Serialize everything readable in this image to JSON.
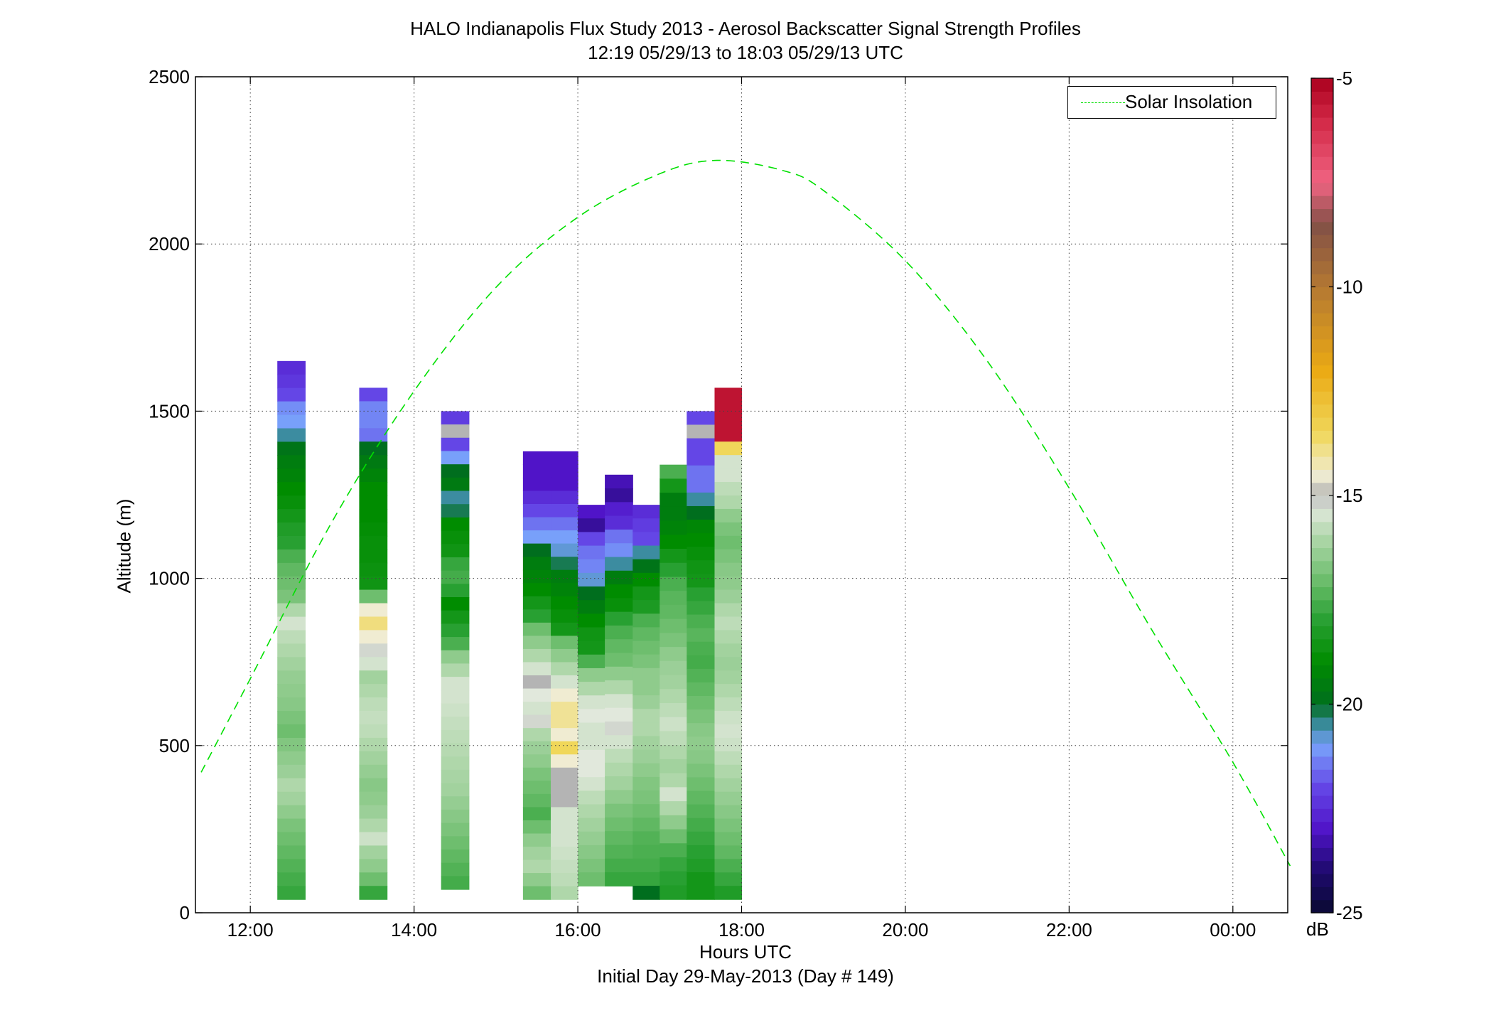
{
  "title": "HALO Indianapolis Flux Study 2013 - Aerosol Backscatter Signal Strength Profiles",
  "subtitle": "12:19 05/29/13 to 18:03 05/29/13  UTC",
  "xlabel": "Hours UTC",
  "xlabel2": "Initial Day 29-May-2013 (Day # 149)",
  "ylabel": "Altitude (m)",
  "legend_label": "Solar Insolation",
  "colorbar_unit": "dB",
  "chart_data": {
    "type": "heatmap",
    "x_axis": {
      "range": [
        11.33,
        24.67
      ],
      "ticks": [
        12,
        14,
        16,
        18,
        20,
        22,
        24
      ],
      "tick_labels": [
        "12:00",
        "14:00",
        "16:00",
        "18:00",
        "20:00",
        "22:00",
        "00:00"
      ]
    },
    "y_axis": {
      "range": [
        0,
        2500
      ],
      "ticks": [
        0,
        500,
        1000,
        1500,
        2000,
        2500
      ],
      "tick_labels": [
        "0",
        "500",
        "1000",
        "1500",
        "2000",
        "2500"
      ]
    },
    "grid": true,
    "legend_position": "top-right",
    "colorbar": {
      "range": [
        -25,
        -5
      ],
      "ticks": [
        -25,
        -20,
        -15,
        -10,
        -5
      ],
      "tick_labels": [
        "-25",
        "-20",
        "-15",
        "-10",
        "-5"
      ]
    },
    "series": [
      {
        "name": "Solar Insolation",
        "type": "line",
        "style": "dashed",
        "color": "#00e000",
        "x": [
          11.4,
          12,
          13,
          14,
          15,
          16,
          17,
          17.7,
          18.5,
          19,
          20,
          21,
          22,
          23,
          24,
          24.7
        ],
        "y": [
          420,
          700,
          1170,
          1560,
          1870,
          2080,
          2210,
          2250,
          2220,
          2160,
          1950,
          1650,
          1270,
          850,
          450,
          140
        ]
      }
    ],
    "profiles": [
      {
        "time_start": 12.33,
        "time_end": 12.67,
        "alt_min": 40,
        "alt_max": 1650,
        "values_top_down": [
          -22.5,
          -22.3,
          -22.0,
          -21.2,
          -21.0,
          -20.5,
          -19.8,
          -19.5,
          -19.3,
          -19.0,
          -18.8,
          -18.5,
          -18.2,
          -18.0,
          -17.5,
          -17.2,
          -17.0,
          -16.8,
          -16.0,
          -15.5,
          -15.8,
          -16.0,
          -16.2,
          -16.4,
          -16.5,
          -16.6,
          -16.8,
          -17.0,
          -16.7,
          -16.5,
          -16.3,
          -16.0,
          -16.2,
          -16.5,
          -16.8,
          -17.0,
          -17.2,
          -17.4,
          -17.6,
          -17.8
        ]
      },
      {
        "time_start": 13.33,
        "time_end": 13.67,
        "alt_min": 40,
        "alt_max": 1570,
        "values_top_down": [
          -22.0,
          -21.3,
          -21.3,
          -21.5,
          -20.0,
          -19.6,
          -19.3,
          -19.0,
          -19.0,
          -19.0,
          -18.9,
          -18.8,
          -18.8,
          -18.7,
          -18.6,
          -17.0,
          -14.5,
          -13.8,
          -14.5,
          -15.2,
          -15.5,
          -16.2,
          -16.0,
          -15.8,
          -15.7,
          -15.8,
          -16.0,
          -16.2,
          -16.4,
          -16.6,
          -16.5,
          -16.3,
          -16.0,
          -15.6,
          -16.2,
          -16.5,
          -17.0,
          -17.8
        ]
      },
      {
        "time_start": 14.33,
        "time_end": 14.67,
        "alt_min": 70,
        "alt_max": 1500,
        "values_top_down": [
          -22.2,
          -15.0,
          -22.0,
          -21.0,
          -20.0,
          -19.6,
          -20.5,
          -20.2,
          -19.0,
          -18.8,
          -18.6,
          -17.8,
          -17.6,
          -18.0,
          -19.0,
          -18.5,
          -18.0,
          -17.5,
          -16.5,
          -16.0,
          -15.5,
          -15.5,
          -15.6,
          -15.7,
          -15.8,
          -15.9,
          -16.0,
          -16.1,
          -16.2,
          -16.4,
          -16.6,
          -16.8,
          -17.0,
          -17.2,
          -17.4,
          -17.6
        ]
      },
      {
        "time_start": 15.33,
        "time_end": 15.67,
        "alt_min": 40,
        "alt_max": 1380,
        "values_top_down": [
          -23.0,
          -23.0,
          -23.0,
          -22.5,
          -22.0,
          -21.5,
          -21.0,
          -20.0,
          -19.5,
          -19.3,
          -19.0,
          -18.5,
          -18.0,
          -17.0,
          -16.5,
          -16.0,
          -15.5,
          -15.0,
          -15.3,
          -15.5,
          -15.2,
          -16.0,
          -16.3,
          -16.5,
          -16.8,
          -17.0,
          -17.2,
          -17.5,
          -17.0,
          -16.5,
          -16.2,
          -16.0,
          -16.5,
          -17.0
        ]
      },
      {
        "time_start": 15.67,
        "time_end": 16.0,
        "alt_min": 40,
        "alt_max": 1380,
        "values_top_down": [
          -23.0,
          -23.0,
          -23.0,
          -22.5,
          -22.0,
          -21.5,
          -21.0,
          -20.8,
          -20.2,
          -19.5,
          -19.3,
          -19.0,
          -18.8,
          -18.5,
          -17.0,
          -16.5,
          -16.0,
          -15.5,
          -14.5,
          -14.0,
          -14.0,
          -14.5,
          -13.5,
          -14.5,
          -15.0,
          -15.0,
          -15.0,
          -15.5,
          -15.5,
          -15.5,
          -15.6,
          -15.7,
          -15.8,
          -16.0
        ]
      },
      {
        "time_start": 16.0,
        "time_end": 16.33,
        "alt_min": 80,
        "alt_max": 1220,
        "values_top_down": [
          -23.0,
          -23.5,
          -22.0,
          -21.5,
          -21.3,
          -20.8,
          -20.0,
          -19.5,
          -19.0,
          -18.6,
          -18.5,
          -17.5,
          -16.5,
          -16.0,
          -15.5,
          -15.3,
          -15.5,
          -15.5,
          -15.3,
          -15.3,
          -15.5,
          -15.8,
          -16.0,
          -16.2,
          -16.4,
          -16.6,
          -16.8,
          -17.0
        ]
      },
      {
        "time_start": 16.33,
        "time_end": 16.67,
        "alt_min": 80,
        "alt_max": 1310,
        "values_top_down": [
          -23.2,
          -23.5,
          -22.8,
          -22.5,
          -21.5,
          -21.2,
          -20.5,
          -19.5,
          -19.0,
          -18.8,
          -18.0,
          -17.5,
          -17.2,
          -17.0,
          -16.5,
          -16.0,
          -15.5,
          -15.3,
          -15.2,
          -15.5,
          -15.8,
          -16.0,
          -16.2,
          -16.5,
          -16.8,
          -17.0,
          -17.2,
          -17.4,
          -17.6,
          -17.8
        ]
      },
      {
        "time_start": 16.67,
        "time_end": 17.0,
        "alt_min": 40,
        "alt_max": 1220,
        "values_top_down": [
          -22.5,
          -22.2,
          -22.0,
          -20.5,
          -19.8,
          -19.0,
          -18.5,
          -18.3,
          -17.5,
          -17.2,
          -17.0,
          -16.8,
          -16.5,
          -16.5,
          -16.3,
          -16.0,
          -16.0,
          -16.2,
          -16.3,
          -16.5,
          -16.7,
          -16.8,
          -17.0,
          -17.2,
          -17.4,
          -17.5,
          -17.6,
          -17.8,
          -20.0
        ]
      },
      {
        "time_start": 17.0,
        "time_end": 17.33,
        "alt_min": 40,
        "alt_max": 1340,
        "values_top_down": [
          -17.5,
          -18.5,
          -19.5,
          -19.5,
          -19.3,
          -19.0,
          -18.5,
          -18.0,
          -17.5,
          -17.3,
          -17.2,
          -17.0,
          -16.8,
          -16.5,
          -16.3,
          -16.2,
          -16.0,
          -15.8,
          -15.6,
          -15.8,
          -16.0,
          -16.2,
          -16.0,
          -15.5,
          -16.0,
          -16.5,
          -17.0,
          -17.5,
          -17.8,
          -18.0,
          -18.2
        ]
      },
      {
        "time_start": 17.33,
        "time_end": 17.67,
        "alt_min": 40,
        "alt_max": 1500,
        "values_top_down": [
          -22.0,
          -15.0,
          -22.0,
          -22.0,
          -21.5,
          -21.5,
          -20.5,
          -20.0,
          -19.2,
          -19.0,
          -18.8,
          -18.6,
          -18.5,
          -18.0,
          -17.8,
          -17.5,
          -17.3,
          -17.5,
          -17.6,
          -17.4,
          -17.2,
          -17.0,
          -16.8,
          -16.6,
          -16.5,
          -16.6,
          -16.8,
          -17.0,
          -17.2,
          -17.4,
          -17.6,
          -17.8,
          -18.0,
          -18.2,
          -18.5,
          -18.5
        ]
      },
      {
        "time_start": 17.67,
        "time_end": 18.0,
        "alt_min": 40,
        "alt_max": 1570,
        "values_top_down": [
          -5.5,
          -5.5,
          -5.5,
          -5.5,
          -13.5,
          -15.5,
          -15.5,
          -15.8,
          -16.0,
          -16.5,
          -16.8,
          -17.0,
          -16.8,
          -16.6,
          -16.5,
          -16.3,
          -16.0,
          -15.8,
          -16.0,
          -16.2,
          -16.3,
          -16.2,
          -16.0,
          -15.8,
          -15.6,
          -15.5,
          -15.6,
          -15.8,
          -16.0,
          -16.2,
          -16.4,
          -16.6,
          -16.8,
          -17.0,
          -17.2,
          -17.5,
          -17.8,
          -18.2
        ]
      }
    ],
    "colors": {
      "solar": "#00e000",
      "grid": "#555555"
    }
  }
}
